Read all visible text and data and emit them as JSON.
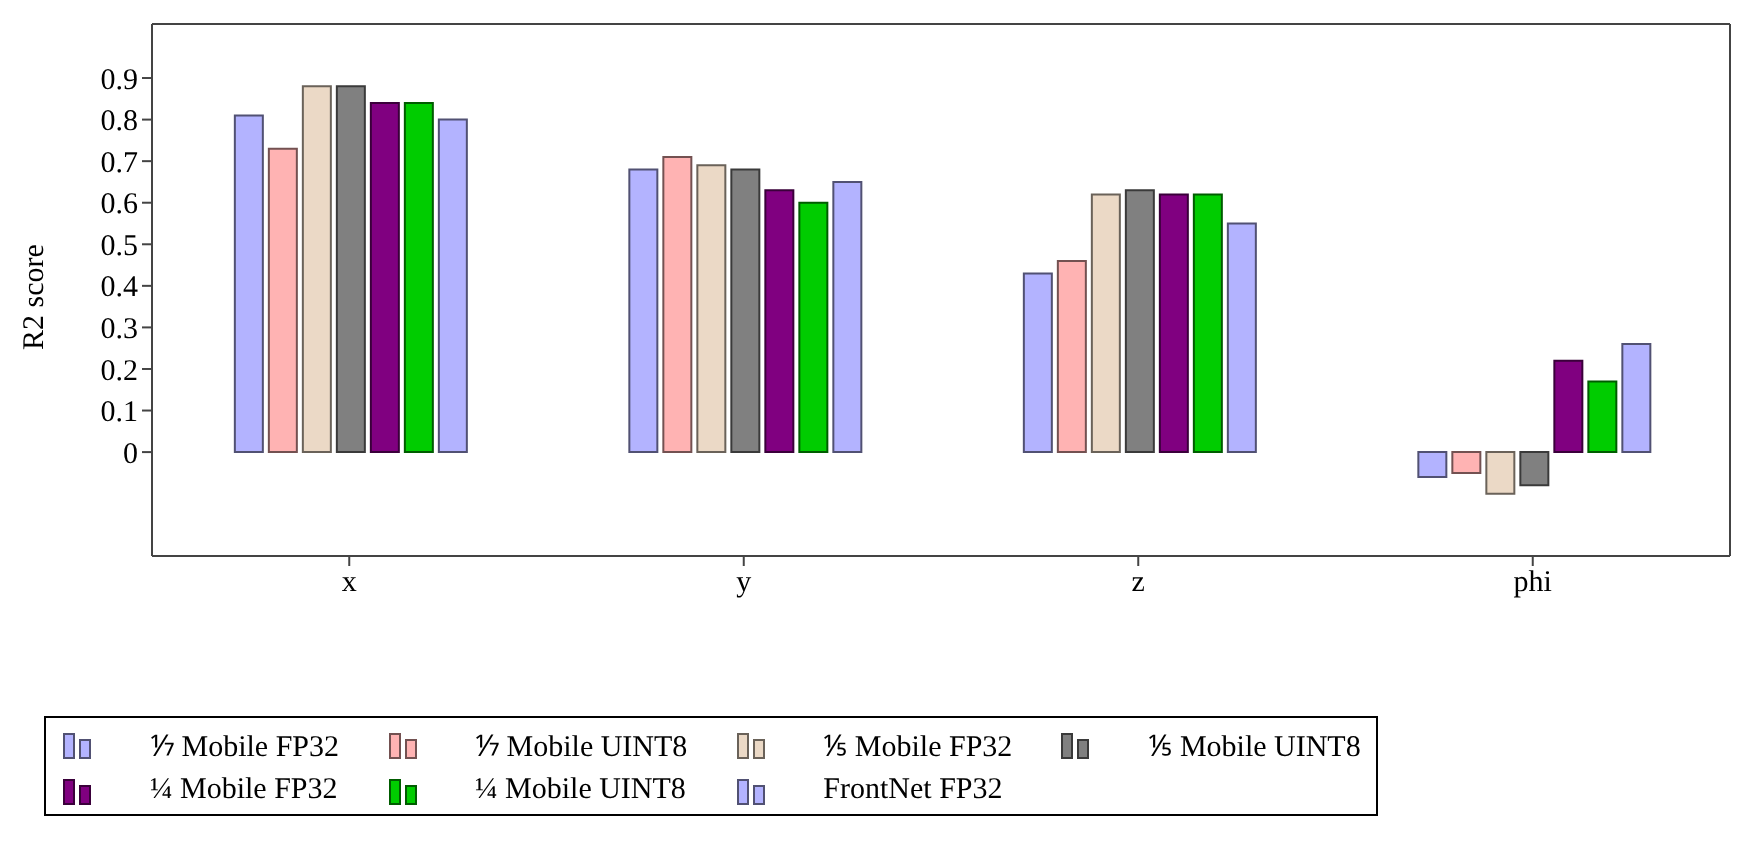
{
  "chart_data": {
    "type": "bar",
    "ylabel": "R2 score",
    "categories": [
      "x",
      "y",
      "z",
      "phi"
    ],
    "series": [
      {
        "name": "⅐ Mobile FP32",
        "color": "#b3b3ff",
        "values": [
          0.81,
          0.68,
          0.43,
          -0.06
        ]
      },
      {
        "name": "⅐ Mobile UINT8",
        "color": "#ffb3b3",
        "values": [
          0.73,
          0.71,
          0.46,
          -0.05
        ]
      },
      {
        "name": "⅕ Mobile FP32",
        "color": "#ebd9c6",
        "values": [
          0.88,
          0.69,
          0.62,
          -0.1
        ]
      },
      {
        "name": "⅕ Mobile UINT8",
        "color": "#808080",
        "values": [
          0.88,
          0.68,
          0.63,
          -0.08
        ]
      },
      {
        "name": "¼ Mobile FP32",
        "color": "#800080",
        "values": [
          0.84,
          0.63,
          0.62,
          0.22
        ]
      },
      {
        "name": "¼ Mobile UINT8",
        "color": "#00cc00",
        "values": [
          0.84,
          0.6,
          0.62,
          0.17
        ]
      },
      {
        "name": "FrontNet FP32",
        "color": "#b3b3ff",
        "values": [
          0.8,
          0.65,
          0.55,
          0.26
        ]
      }
    ],
    "ylim": [
      -0.25,
      1.03
    ],
    "yticks": [
      0,
      0.1,
      0.2,
      0.3,
      0.4,
      0.5,
      0.6,
      0.7,
      0.8,
      0.9
    ],
    "grid": false,
    "legend": "bottom"
  }
}
